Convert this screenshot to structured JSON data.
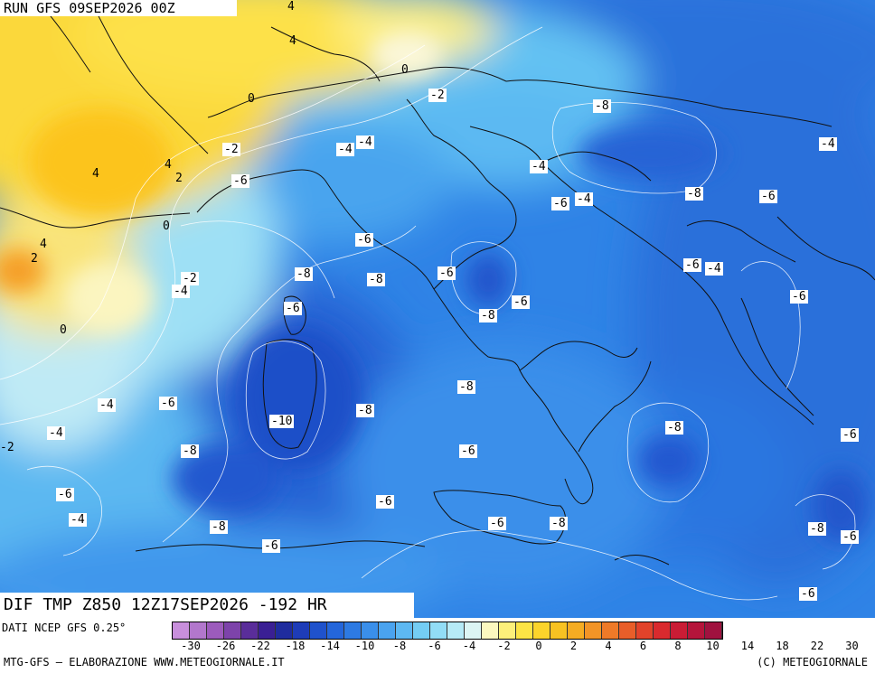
{
  "header": {
    "run_title": "RUN GFS 09SEP2026 00Z"
  },
  "field_title": "DIF TMP Z850 12Z17SEP2026 -192 HR",
  "source": "DATI NCEP GFS 0.25°",
  "footer": {
    "left": "MTG-GFS — ELABORAZIONE WWW.METEOGIORNALE.IT",
    "right": "(C) METEOGIORNALE"
  },
  "legend": {
    "colors": [
      "#c88fdc",
      "#b277cc",
      "#9c5bbc",
      "#7d43aa",
      "#5a2d9a",
      "#3a1f94",
      "#1f2c9e",
      "#1e3cb8",
      "#1f52cc",
      "#2466db",
      "#2d7ae3",
      "#3a8fea",
      "#4aa3ef",
      "#5db8f2",
      "#74cdf4",
      "#92ddf6",
      "#b6eaf6",
      "#dcf5f4",
      "#fbf7bf",
      "#fdf07a",
      "#fce445",
      "#fbd42b",
      "#f8c222",
      "#f5ac22",
      "#f29426",
      "#ee7a28",
      "#e85e29",
      "#e2432a",
      "#d92a2e",
      "#c91c35",
      "#b5153b",
      "#a0123f"
    ],
    "ticks": [
      "-30",
      "-26",
      "-22",
      "-18",
      "-14",
      "-10",
      "-8",
      "-6",
      "-4",
      "-2",
      "0",
      "2",
      "4",
      "6",
      "8",
      "10",
      "14",
      "18",
      "22",
      "30"
    ]
  },
  "map_labels": [
    {
      "t": "4",
      "boxed": false
    },
    {
      "t": "4",
      "boxed": false
    },
    {
      "t": "0",
      "boxed": false
    },
    {
      "t": "-2",
      "boxed": true
    },
    {
      "t": "0",
      "boxed": false
    },
    {
      "t": "-8",
      "boxed": true
    },
    {
      "t": "-4",
      "boxed": true
    },
    {
      "t": "-2",
      "boxed": true
    },
    {
      "t": "-4",
      "boxed": true
    },
    {
      "t": "4",
      "boxed": false
    },
    {
      "t": "2",
      "boxed": false
    },
    {
      "t": "4",
      "boxed": false
    },
    {
      "t": "-6",
      "boxed": true
    },
    {
      "t": "-4",
      "boxed": true
    },
    {
      "t": "-4",
      "boxed": true
    },
    {
      "t": "-6",
      "boxed": true
    },
    {
      "t": "-8",
      "boxed": true
    },
    {
      "t": "-6",
      "boxed": true
    },
    {
      "t": "-4",
      "boxed": true
    },
    {
      "t": "0",
      "boxed": false
    },
    {
      "t": "-6",
      "boxed": true
    },
    {
      "t": "4",
      "boxed": false
    },
    {
      "t": "2",
      "boxed": false
    },
    {
      "t": "-2",
      "boxed": true
    },
    {
      "t": "-4",
      "boxed": true
    },
    {
      "t": "-8",
      "boxed": true
    },
    {
      "t": "-8",
      "boxed": true
    },
    {
      "t": "-6",
      "boxed": true
    },
    {
      "t": "-6",
      "boxed": true
    },
    {
      "t": "-4",
      "boxed": true
    },
    {
      "t": "-6",
      "boxed": true
    },
    {
      "t": "-6",
      "boxed": true
    },
    {
      "t": "0",
      "boxed": false
    },
    {
      "t": "-8",
      "boxed": true
    },
    {
      "t": "-6",
      "boxed": true
    },
    {
      "t": "-4",
      "boxed": true
    },
    {
      "t": "-6",
      "boxed": true
    },
    {
      "t": "-10",
      "boxed": true
    },
    {
      "t": "-8",
      "boxed": true
    },
    {
      "t": "-8",
      "boxed": true
    },
    {
      "t": "-2",
      "boxed": false
    },
    {
      "t": "-4",
      "boxed": true
    },
    {
      "t": "-8",
      "boxed": true
    },
    {
      "t": "-6",
      "boxed": true
    },
    {
      "t": "-8",
      "boxed": true
    },
    {
      "t": "-6",
      "boxed": true
    },
    {
      "t": "-6",
      "boxed": true
    },
    {
      "t": "-4",
      "boxed": true
    },
    {
      "t": "-6",
      "boxed": true
    },
    {
      "t": "-6",
      "boxed": true
    },
    {
      "t": "-8",
      "boxed": true
    },
    {
      "t": "-6",
      "boxed": true
    },
    {
      "t": "-8",
      "boxed": true
    },
    {
      "t": "-8",
      "boxed": true
    },
    {
      "t": "-6",
      "boxed": true
    },
    {
      "t": "-6",
      "boxed": true
    }
  ]
}
